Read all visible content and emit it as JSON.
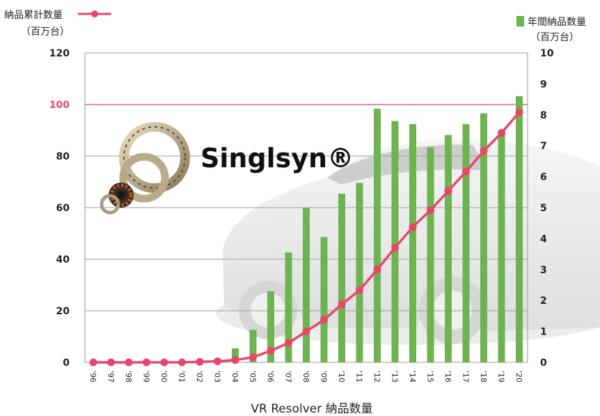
{
  "chart_data": {
    "type": "bar+line",
    "title": "VR Resolver 納品数量",
    "brand": "Singlsyn®",
    "left_axis": {
      "label_line1": "納品累計数量",
      "label_line2": "（百万台）",
      "ylim": [
        0,
        120
      ],
      "ticks": [
        "0",
        "20",
        "40",
        "60",
        "80",
        "100",
        "120"
      ],
      "highlight_tick": 100
    },
    "right_axis": {
      "label_line1": "年間納品数量",
      "label_line2": "（百万台）",
      "ylim": [
        0,
        10
      ],
      "ticks": [
        "0",
        "1",
        "2",
        "3",
        "4",
        "5",
        "6",
        "7",
        "8",
        "9",
        "10"
      ]
    },
    "categories": [
      "'96",
      "'97",
      "'98",
      "'99",
      "'00",
      "'01",
      "'02",
      "'03",
      "'04",
      "'05",
      "'06",
      "'07",
      "'08",
      "'09",
      "'10",
      "'11",
      "'12",
      "'13",
      "'14",
      "'15",
      "'16",
      "'17",
      "'18",
      "'19",
      "'20"
    ],
    "series": [
      {
        "name": "年間納品数量",
        "type": "bar",
        "axis": "right",
        "color": "#6db34f",
        "values": [
          0,
          0,
          0,
          0,
          0,
          0,
          0,
          0,
          0.45,
          1.05,
          2.3,
          3.55,
          5.0,
          4.05,
          5.45,
          5.8,
          8.2,
          7.8,
          7.7,
          6.95,
          7.35,
          7.7,
          8.05,
          7.4,
          8.6
        ]
      },
      {
        "name": "納品累計数量",
        "type": "line",
        "axis": "left",
        "color": "#e8456a",
        "values": [
          0,
          0,
          0,
          0,
          0,
          0,
          0.2,
          0.4,
          0.9,
          2,
          4.5,
          7.5,
          12,
          16.5,
          22.5,
          28,
          36,
          44.5,
          52.5,
          59,
          66.5,
          74,
          82,
          89,
          97
        ]
      }
    ],
    "grid": true,
    "legend": "top"
  }
}
